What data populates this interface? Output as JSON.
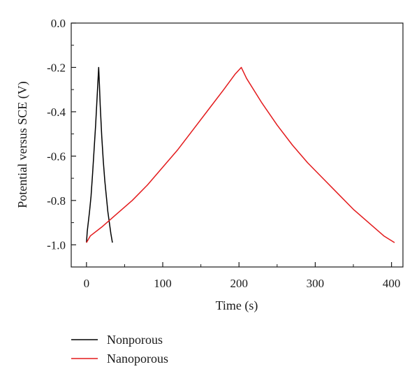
{
  "chart_data": {
    "type": "line",
    "xlabel": "Time (s)",
    "ylabel": "Potential versus SCE (V)",
    "xlim": [
      -20,
      415
    ],
    "ylim": [
      -1.1,
      0.0
    ],
    "xticks": [
      0,
      100,
      200,
      300,
      400
    ],
    "xtick_labels": [
      "0",
      "100",
      "200",
      "300",
      "400"
    ],
    "yticks": [
      0.0,
      -0.2,
      -0.4,
      -0.6,
      -0.8,
      -1.0
    ],
    "ytick_labels": [
      "0.0",
      "-0.2",
      "-0.4",
      "-0.6",
      "-0.8",
      "-1.0"
    ],
    "grid": false,
    "legend_position": "below",
    "series": [
      {
        "name": "Nonporous",
        "color": "#000000",
        "x": [
          0,
          1,
          2,
          4,
          6,
          8,
          10,
          12,
          14,
          16,
          17,
          18,
          20,
          22,
          24,
          26,
          28,
          30,
          32,
          34
        ],
        "y": [
          -0.99,
          -0.94,
          -0.91,
          -0.85,
          -0.78,
          -0.68,
          -0.57,
          -0.46,
          -0.33,
          -0.2,
          -0.28,
          -0.37,
          -0.51,
          -0.62,
          -0.71,
          -0.78,
          -0.85,
          -0.9,
          -0.95,
          -0.99
        ]
      },
      {
        "name": "Nanoporous",
        "color": "#e31a1c",
        "x": [
          0,
          5,
          20,
          40,
          60,
          80,
          100,
          120,
          140,
          160,
          180,
          195,
          203,
          210,
          230,
          250,
          270,
          290,
          310,
          330,
          350,
          370,
          390,
          404
        ],
        "y": [
          -0.99,
          -0.96,
          -0.92,
          -0.86,
          -0.8,
          -0.73,
          -0.65,
          -0.57,
          -0.48,
          -0.39,
          -0.3,
          -0.23,
          -0.2,
          -0.25,
          -0.36,
          -0.46,
          -0.55,
          -0.63,
          -0.7,
          -0.77,
          -0.84,
          -0.9,
          -0.96,
          -0.99
        ]
      }
    ]
  }
}
